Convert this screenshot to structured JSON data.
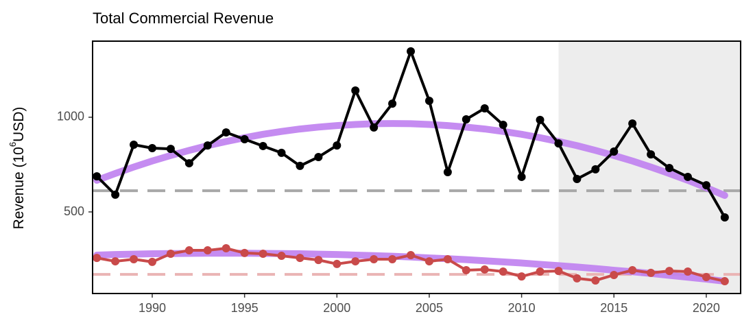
{
  "chart_data": {
    "type": "line",
    "title": "Total Commercial Revenue",
    "ylabel": {
      "text": "Revenue (10",
      "sup": "6",
      "rest": "USD)"
    },
    "x": [
      1987,
      1988,
      1989,
      1990,
      1991,
      1992,
      1993,
      1994,
      1995,
      1996,
      1997,
      1998,
      1999,
      2000,
      2001,
      2002,
      2003,
      2004,
      2005,
      2006,
      2007,
      2008,
      2009,
      2010,
      2011,
      2012,
      2013,
      2014,
      2015,
      2016,
      2017,
      2018,
      2019,
      2020,
      2021
    ],
    "series": [
      {
        "style": "trend",
        "color": "#bf7ff0",
        "values": [
          667,
          703,
          737,
          769,
          798,
          825,
          850,
          872,
          892,
          910,
          925,
          938,
          948,
          956,
          962,
          966,
          967,
          966,
          962,
          956,
          948,
          938,
          925,
          910,
          892,
          872,
          850,
          825,
          798,
          769,
          737,
          703,
          667,
          628,
          587
        ]
      },
      {
        "style": "trend",
        "color": "#bf7ff0",
        "values": [
          272,
          275,
          277,
          279,
          280,
          281,
          282,
          282,
          282,
          281,
          280,
          279,
          277,
          275,
          272,
          269,
          266,
          262,
          257,
          253,
          248,
          242,
          236,
          230,
          223,
          216,
          209,
          201,
          192,
          184,
          175,
          165,
          155,
          145,
          134
        ]
      },
      {
        "style": "points",
        "color": "#000000",
        "values": [
          688,
          591,
          855,
          837,
          833,
          757,
          851,
          920,
          884,
          848,
          812,
          743,
          790,
          851,
          1141,
          946,
          1072,
          1348,
          1087,
          710,
          989,
          1047,
          960,
          685,
          986,
          862,
          674,
          725,
          819,
          967,
          804,
          732,
          685,
          641,
          471
        ]
      },
      {
        "style": "points",
        "color": "#c94a4a",
        "values": [
          257,
          239,
          250,
          236,
          279,
          297,
          297,
          308,
          283,
          279,
          268,
          257,
          246,
          225,
          239,
          250,
          250,
          272,
          239,
          250,
          192,
          196,
          185,
          159,
          185,
          188,
          149,
          138,
          167,
          192,
          178,
          188,
          185,
          156,
          134
        ]
      }
    ],
    "reference_lines": [
      {
        "value": 612,
        "color": "#a8a8a8"
      },
      {
        "value": 170,
        "color": "#eab4b4"
      }
    ],
    "shade_from": 2012,
    "xlim": [
      1986.77,
      2021.86
    ],
    "ylim": [
      69,
      1402
    ],
    "xticks": [
      1990,
      1995,
      2000,
      2005,
      2010,
      2015,
      2020
    ],
    "yticks": [
      500,
      1000
    ]
  }
}
